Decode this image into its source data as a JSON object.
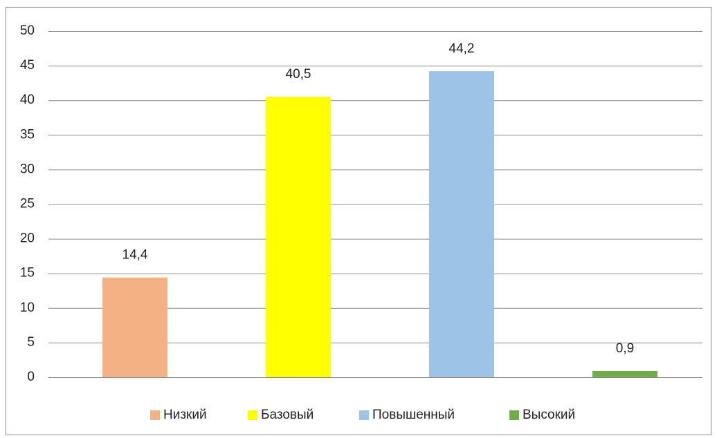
{
  "chart_data": {
    "type": "bar",
    "categories": [
      "Низкий",
      "Базовый",
      "Повышенный",
      "Высокий"
    ],
    "values": [
      14.4,
      40.5,
      44.2,
      0.9
    ],
    "value_labels": [
      "14,4",
      "40,5",
      "44,2",
      "0,9"
    ],
    "colors": [
      "#f4b183",
      "#ffff00",
      "#9dc3e6",
      "#70ad47"
    ],
    "ylim": [
      0,
      50
    ],
    "yticks": [
      0,
      5,
      10,
      15,
      20,
      25,
      30,
      35,
      40,
      45,
      50
    ],
    "grid": true,
    "legend": "bottom"
  }
}
